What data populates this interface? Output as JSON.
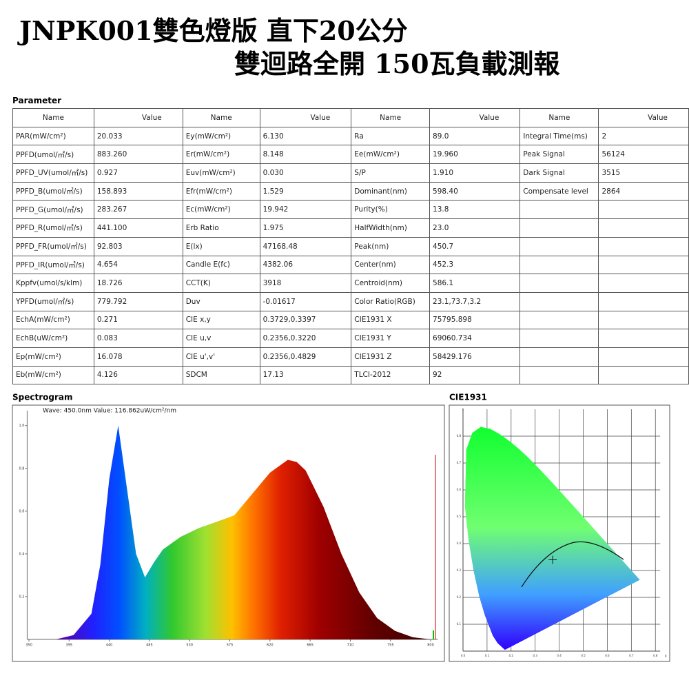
{
  "header": {
    "title_line1": "JNPK001雙色燈版 直下20公分",
    "title_line2": "雙迴路全開 150瓦負載測報"
  },
  "table": {
    "title": "Parameter",
    "columns": [
      "Name",
      "Value",
      "Name",
      "Value",
      "Name",
      "Value",
      "Name",
      "Value"
    ],
    "rows": [
      [
        "PAR(mW/cm²)",
        "20.033",
        "Ey(mW/cm²)",
        "6.130",
        "Ra",
        "89.0",
        "Integral Time(ms)",
        "2"
      ],
      [
        "PPFD(umol/㎡/s)",
        "883.260",
        "Er(mW/cm²)",
        "8.148",
        "Ee(mW/cm²)",
        "19.960",
        "Peak Signal",
        "56124"
      ],
      [
        "PPFD_UV(umol/㎡/s)",
        "0.927",
        "Euv(mW/cm²)",
        "0.030",
        "S/P",
        "1.910",
        "Dark Signal",
        "3515"
      ],
      [
        "PPFD_B(umol/㎡/s)",
        "158.893",
        "Efr(mW/cm²)",
        "1.529",
        "Dominant(nm)",
        "598.40",
        "Compensate level",
        "2864"
      ],
      [
        "PPFD_G(umol/㎡/s)",
        "283.267",
        "Ec(mW/cm²)",
        "19.942",
        "Purity(%)",
        "13.8",
        null,
        null
      ],
      [
        "PPFD_R(umol/㎡/s)",
        "441.100",
        "Erb Ratio",
        "1.975",
        "HalfWidth(nm)",
        "23.0",
        null,
        null
      ],
      [
        "PPFD_FR(umol/㎡/s)",
        "92.803",
        "E(lx)",
        "47168.48",
        "Peak(nm)",
        "450.7",
        null,
        null
      ],
      [
        "PPFD_IR(umol/㎡/s)",
        "4.654",
        "Candle E(fc)",
        "4382.06",
        "Center(nm)",
        "452.3",
        null,
        null
      ],
      [
        "Kppfv(umol/s/klm)",
        "18.726",
        "CCT(K)",
        "3918",
        "Centroid(nm)",
        "586.1",
        null,
        null
      ],
      [
        "YPFD(umol/㎡/s)",
        "779.792",
        "Duv",
        "-0.01617",
        "Color Ratio(RGB)",
        "23.1,73.7,3.2",
        null,
        null
      ],
      [
        "EchA(mW/cm²)",
        "0.271",
        "CIE x,y",
        "0.3729,0.3397",
        "CIE1931 X",
        "75795.898",
        null,
        null
      ],
      [
        "EchB(uW/cm²)",
        "0.083",
        "CIE u,v",
        "0.2356,0.3220",
        "CIE1931 Y",
        "69060.734",
        null,
        null
      ],
      [
        "Ep(mW/cm²)",
        "16.078",
        "CIE u',v'",
        "0.2356,0.4829",
        "CIE1931 Z",
        "58429.176",
        null,
        null
      ],
      [
        "Eb(mW/cm²)",
        "4.126",
        "SDCM",
        "17.13",
        "TLCI-2012",
        "92",
        null,
        null
      ]
    ]
  },
  "chart_data": [
    {
      "type": "area",
      "title": "Spectrogram",
      "annotation": "Wave: 450.0nm Value: 116.862uW/cm²/nm",
      "x": [
        380,
        400,
        420,
        430,
        440,
        450,
        460,
        470,
        480,
        490,
        500,
        520,
        540,
        560,
        580,
        600,
        620,
        640,
        650,
        660,
        680,
        700,
        720,
        740,
        760,
        780,
        800
      ],
      "values": [
        0,
        0.02,
        0.12,
        0.35,
        0.75,
        1.0,
        0.7,
        0.4,
        0.29,
        0.36,
        0.42,
        0.48,
        0.52,
        0.55,
        0.58,
        0.68,
        0.78,
        0.84,
        0.83,
        0.79,
        0.62,
        0.4,
        0.22,
        0.1,
        0.04,
        0.01,
        0
      ],
      "xlim": [
        348,
        808
      ],
      "ylim": [
        0,
        1.07
      ],
      "xticks": [
        350,
        395,
        440,
        485,
        530,
        575,
        620,
        665,
        710,
        755,
        800
      ],
      "yticks": [
        0.2,
        0.4,
        0.6,
        0.8,
        {
          "value": 1,
          "label": "1.0"
        }
      ]
    },
    {
      "type": "scatter",
      "title": "CIE1931",
      "x_label": "x",
      "y_label": "y",
      "x": [
        0.3729
      ],
      "values": [
        0.3397
      ],
      "xlim": [
        0,
        0.82
      ],
      "ylim": [
        0,
        0.9
      ],
      "xticks": [
        {
          "value": 0,
          "label": "0.0"
        },
        0.1,
        0.2,
        0.3,
        0.4,
        0.5,
        0.6,
        0.7,
        0.8
      ],
      "yticks": [
        0.1,
        0.2,
        0.3,
        0.4,
        0.5,
        0.6,
        0.7,
        0.8
      ],
      "grid": true
    }
  ]
}
